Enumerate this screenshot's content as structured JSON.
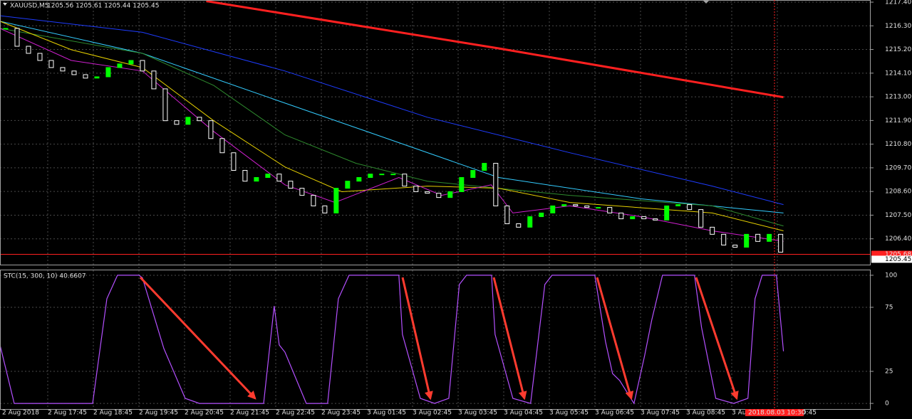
{
  "chart_data": [
    {
      "type": "candlestick",
      "title": "XAUUSD,M5",
      "subtitle": "1205.56 1205.61 1205.44 1205.45",
      "x": [
        0,
        1,
        2,
        3,
        4,
        5,
        6,
        7,
        8,
        9,
        10,
        11,
        12,
        13,
        14,
        15,
        16,
        17,
        18,
        19,
        20,
        21,
        22,
        23,
        24,
        25,
        26,
        27,
        28,
        29,
        30,
        31,
        32,
        33,
        34,
        35,
        36,
        37,
        38,
        39,
        40,
        41,
        42,
        43,
        44,
        45,
        46,
        47,
        48,
        49,
        50,
        51,
        52,
        53,
        54,
        55,
        56,
        57,
        58,
        59,
        60,
        61,
        62,
        63,
        64,
        65,
        66,
        67,
        68
      ],
      "values": [
        1216.18,
        1215.35,
        1215.02,
        1214.69,
        1214.36,
        1214.2,
        1214.03,
        1213.87,
        1213.93,
        1214.36,
        1214.53,
        1214.69,
        1214.2,
        1213.37,
        1211.89,
        1211.72,
        1212.05,
        1211.89,
        1211.06,
        1210.4,
        1209.58,
        1209.08,
        1209.25,
        1209.41,
        1209.08,
        1208.75,
        1208.42,
        1207.93,
        1207.6,
        1208.75,
        1209.08,
        1209.25,
        1209.41,
        1209.41,
        1209.41,
        1208.85,
        1208.59,
        1208.52,
        1208.32,
        1208.59,
        1209.25,
        1209.58,
        1209.91,
        1207.93,
        1207.1,
        1206.94,
        1207.43,
        1207.6,
        1207.93,
        1207.99,
        1207.93,
        1207.86,
        1207.86,
        1207.6,
        1207.33,
        1207.43,
        1207.33,
        1207.27,
        1207.93,
        1207.99,
        1207.76,
        1206.94,
        1206.61,
        1206.11,
        1206.01,
        1206.61,
        1206.28,
        1206.61,
        1205.78
      ],
      "up_color": "#00ff00",
      "down_color": "#ffffff",
      "moving_averages": [
        {
          "color": "#ff2020",
          "x": [
            17.6,
            43.25,
            68.25
          ],
          "values": [
            1217.45,
            1215.25,
            1212.98
          ]
        },
        {
          "color": "#1e3cff",
          "x": [
            -0.5,
            12,
            24.5,
            37,
            49.5,
            62,
            68.25
          ],
          "values": [
            1216.77,
            1216.0,
            1214.2,
            1212.05,
            1210.4,
            1208.85,
            1207.99
          ]
        },
        {
          "color": "#33ccff",
          "x": [
            -0.5,
            12,
            24.5,
            30.75,
            43.25,
            55.75,
            68.25
          ],
          "values": [
            1216.51,
            1215.02,
            1212.71,
            1211.56,
            1209.25,
            1208.26,
            1207.6
          ]
        },
        {
          "color": "#2e8b2e",
          "x": [
            -0.5,
            12,
            18.25,
            24.5,
            30.75,
            37,
            49.5,
            62,
            68.25
          ],
          "values": [
            1216.18,
            1215.02,
            1213.53,
            1211.23,
            1209.91,
            1209.08,
            1208.42,
            1207.93,
            1207.0
          ]
        },
        {
          "color": "#e6d000",
          "x": [
            -0.5,
            5.75,
            12,
            18.25,
            24.5,
            29.5,
            37,
            43.25,
            49.5,
            62,
            68.25
          ],
          "values": [
            1216.51,
            1215.19,
            1214.36,
            1211.89,
            1209.74,
            1208.59,
            1208.85,
            1208.75,
            1208.09,
            1207.6,
            1206.77
          ]
        },
        {
          "color": "#d020d0",
          "x": [
            -0.5,
            5.75,
            12,
            18.25,
            24.5,
            28.9,
            34.5,
            38.25,
            42.6,
            44.5,
            49.5,
            55.75,
            62,
            68.25
          ],
          "values": [
            1216.18,
            1214.69,
            1214.2,
            1211.39,
            1208.91,
            1208.09,
            1209.25,
            1208.42,
            1208.91,
            1207.6,
            1207.93,
            1207.43,
            1206.77,
            1206.28
          ]
        }
      ],
      "xlim": [
        -0.5,
        75.9
      ],
      "ylim": [
        1205.2,
        1217.5
      ],
      "yticks": [
        {
          "value": 1217.4,
          "label": "1217.40"
        },
        {
          "value": 1216.3,
          "label": "1216.30"
        },
        {
          "value": 1215.2,
          "label": "1215.20"
        },
        {
          "value": 1214.1,
          "label": "1214.10"
        },
        {
          "value": 1213.0,
          "label": "1213.00"
        },
        {
          "value": 1211.9,
          "label": "1211.90"
        },
        {
          "value": 1210.8,
          "label": "1210.80"
        },
        {
          "value": 1209.7,
          "label": "1209.70"
        },
        {
          "value": 1208.6,
          "label": "1208.60"
        },
        {
          "value": 1207.5,
          "label": "1207.50"
        },
        {
          "value": 1206.4,
          "label": "1206.40"
        }
      ],
      "bid": {
        "value": 1205.45,
        "label": "1205.45"
      },
      "ask": {
        "value": 1205.68,
        "label": "1205.68"
      },
      "grid": true,
      "time_labels": [
        "2 Aug 2018",
        "2 Aug 17:45",
        "2 Aug 18:45",
        "2 Aug 19:45",
        "2 Aug 20:45",
        "2 Aug 21:45",
        "2 Aug 22:45",
        "2 Aug 23:45",
        "3 Aug 01:45",
        "3 Aug 02:45",
        "3 Aug 03:45",
        "3 Aug 04:45",
        "3 Aug 05:45",
        "3 Aug 06:45",
        "3 Aug 07:45",
        "3 Aug 08:45",
        "3 Aug 09:45",
        "3 Aug 10:45"
      ],
      "cursor_label": "2018.08.03 10:30"
    },
    {
      "type": "line",
      "title": "STC(15, 300, 10) 40.6607",
      "color": "#b450ff",
      "x": [
        -0.5,
        0.75,
        7.63,
        8.88,
        9.81,
        11.69,
        12,
        13.88,
        15.75,
        17,
        22.63,
        23.56,
        24,
        24.5,
        26.38,
        28.25,
        29.19,
        30.13,
        34.5,
        34.81,
        36.38,
        37.63,
        38.88,
        39.81,
        40.44,
        42.63,
        42.94,
        44.5,
        46.06,
        47.31,
        47.94,
        51.69,
        52.63,
        53.25,
        53.88,
        55.13,
        56.06,
        56.69,
        57.63,
        60.44,
        61.06,
        62.31,
        63.88,
        65.13,
        65.75,
        66.38,
        67.63,
        68.25
      ],
      "values": [
        45.6,
        0,
        0,
        81.7,
        100,
        100,
        98,
        42.8,
        3.9,
        0,
        0,
        76,
        45.6,
        40,
        0,
        0,
        81.7,
        100,
        100,
        53.9,
        3.9,
        0,
        3.9,
        92.8,
        100,
        100,
        53.9,
        3.9,
        0,
        92.8,
        100,
        100,
        48.3,
        23.3,
        17.8,
        0,
        37.2,
        65,
        100,
        100,
        59.4,
        3.9,
        0,
        3.9,
        81.7,
        100,
        100,
        40.6607
      ],
      "xlim": [
        -0.5,
        75.9
      ],
      "ylim": [
        -4.4,
        103.3
      ],
      "yticks": [
        0,
        25,
        75,
        100
      ],
      "grid": true
    }
  ]
}
